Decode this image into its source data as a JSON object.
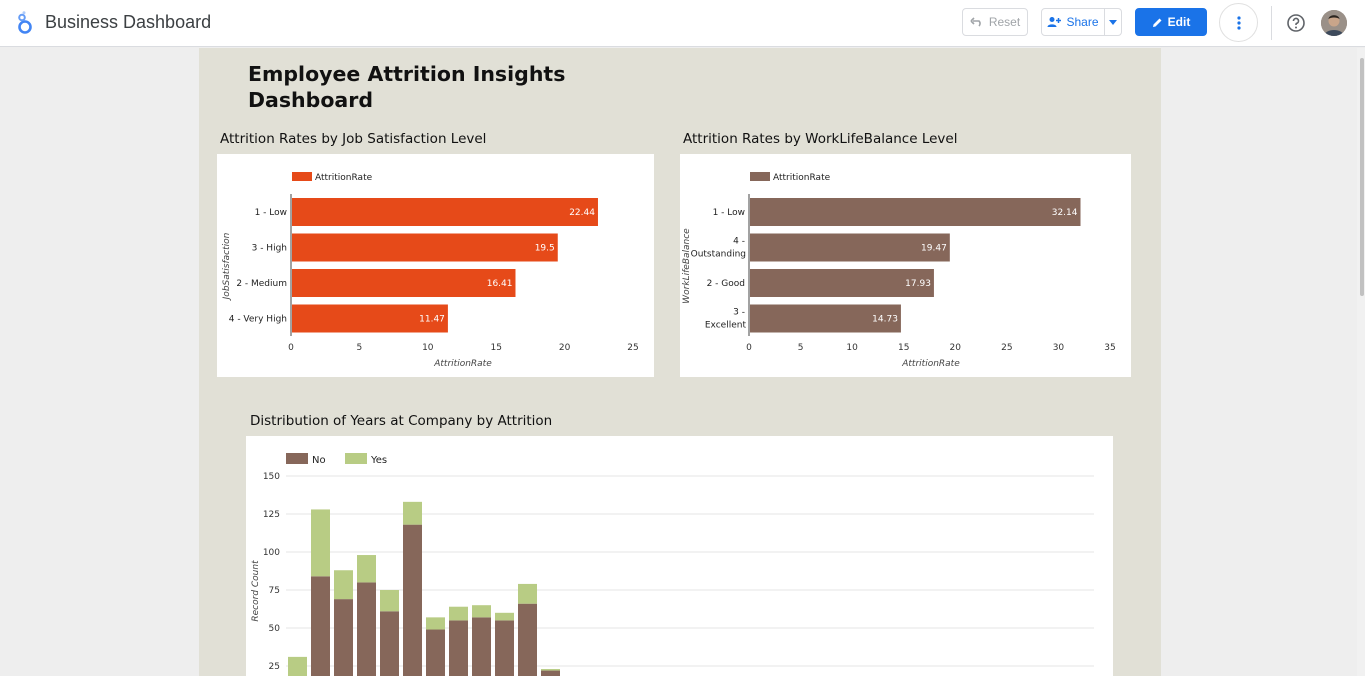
{
  "app": {
    "title": "Business Dashboard",
    "reset_label": "Reset",
    "share_label": "Share",
    "edit_label": "Edit",
    "accent": "#1a73e8"
  },
  "page": {
    "title": "Employee Attrition Insights Dashboard"
  },
  "chart_data": [
    {
      "type": "bar",
      "orientation": "horizontal",
      "title": "Attrition Rates by Job Satisfaction Level",
      "legend": [
        "AttritionRate"
      ],
      "categories": [
        "1 - Low",
        "3 - High",
        "2 - Medium",
        "4 - Very High"
      ],
      "values": [
        22.44,
        19.5,
        16.41,
        11.47
      ],
      "xlabel": "AttritionRate",
      "ylabel": "JobSatisfaction",
      "xlim": [
        0,
        25
      ],
      "ticks": [
        0,
        5,
        10,
        15,
        20,
        25
      ],
      "color": "#e64a19"
    },
    {
      "type": "bar",
      "orientation": "horizontal",
      "title": "Attrition Rates by WorkLifeBalance Level",
      "legend": [
        "AttritionRate"
      ],
      "categories": [
        "1 - Low",
        "4 - Outstanding",
        "2 - Good",
        "3 - Excellent"
      ],
      "values": [
        32.14,
        19.47,
        17.93,
        14.73
      ],
      "xlabel": "AttritionRate",
      "ylabel": "WorkLifeBalance",
      "xlim": [
        0,
        35
      ],
      "ticks": [
        0,
        5,
        10,
        15,
        20,
        25,
        30,
        35
      ],
      "color": "#86675a"
    },
    {
      "type": "bar",
      "stacked": true,
      "title": "Distribution of Years at Company by Attrition",
      "ylabel": "Record Count",
      "ylim": [
        0,
        150
      ],
      "ticks": [
        25,
        50,
        75,
        100,
        125,
        150
      ],
      "series": [
        {
          "name": "No",
          "color": "#86675a",
          "values": [
            15,
            84,
            69,
            80,
            61,
            118,
            49,
            55,
            57,
            55,
            66,
            22
          ]
        },
        {
          "name": "Yes",
          "color": "#b8cc84",
          "values": [
            16,
            44,
            19,
            18,
            14,
            15,
            8,
            9,
            8,
            5,
            13,
            1
          ]
        }
      ]
    }
  ]
}
